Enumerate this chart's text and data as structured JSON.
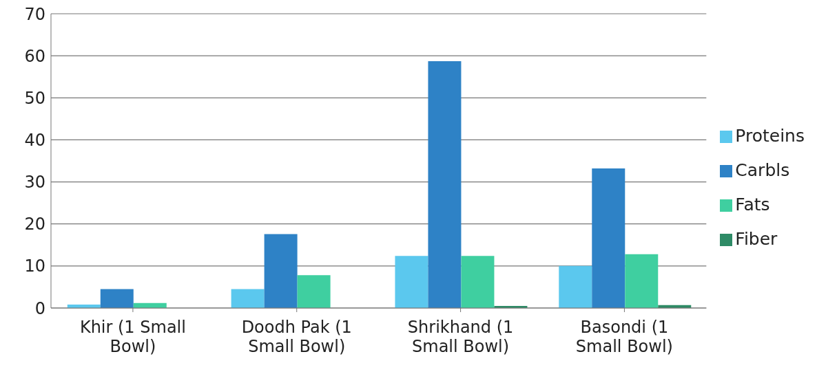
{
  "chart_data": {
    "type": "bar",
    "categories": [
      "Khir (1 Small Bowl)",
      "Doodh Pak (1 Small Bowl)",
      "Shrikhand (1 Small Bowl)",
      "Basondi (1 Small Bowl)"
    ],
    "series": [
      {
        "name": "Proteins",
        "color": "#5bc8ee",
        "values": [
          0.8,
          4.5,
          12.4,
          10
        ]
      },
      {
        "name": "Carbls",
        "color": "#2e82c6",
        "values": [
          4.5,
          17.6,
          58.7,
          33.2
        ]
      },
      {
        "name": "Fats",
        "color": "#3fcfa0",
        "values": [
          1.2,
          7.8,
          12.4,
          12.8
        ]
      },
      {
        "name": "Fiber",
        "color": "#2e8b66",
        "values": [
          0,
          0,
          0.5,
          0.7
        ]
      }
    ],
    "ylim": [
      0,
      70
    ],
    "yticks": [
      0,
      10,
      20,
      30,
      40,
      50,
      60,
      70
    ],
    "grid": "y",
    "legend": "right"
  }
}
